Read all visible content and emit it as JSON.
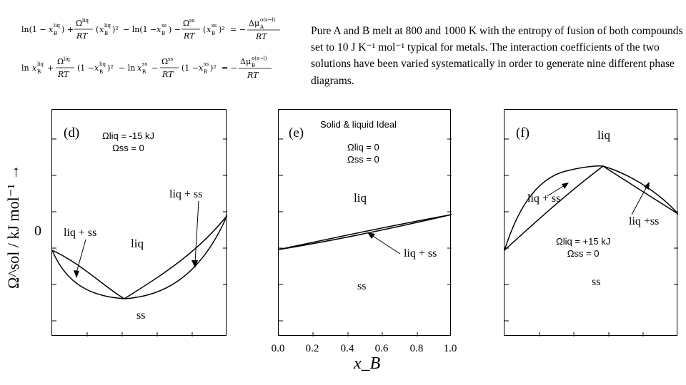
{
  "equations": {
    "eq1": "ln(1 − x_B^liq) + (Ω^liq/RT)(x_B^liq)² − ln(1 − x_B^ss) − (Ω^ss/RT)(x_B^ss)² = −Δμ_A^o(s→l)/RT",
    "eq2": "ln x_B^liq + (Ω^liq/RT)(1 − x_B^liq)² − ln x_B^ss − (Ω^ss/RT)(1 − x_B^ss)² = −Δμ_B^o(s→l)/RT"
  },
  "description": "Pure A and B melt at 800 and 1000 K with the entropy of fusion of both compounds set to 10 J K⁻¹ mol⁻¹ typical for metals. The interaction coefficients of the two solutions have been varied systematically in order to generate nine different phase diagrams.",
  "y_axis_label": "Ω^sol / kJ mol⁻¹ →",
  "y_zero_label": "0",
  "x_axis_label": "x_B",
  "x_ticks": [
    "0.0",
    "0.2",
    "0.4",
    "0.6",
    "0.8",
    "1.0"
  ],
  "panels": [
    {
      "letter": "(d)",
      "omega_liq": "Ωliq = -15 kJ",
      "omega_ss": "Ωss = 0",
      "labels": {
        "liq_ss_right": "liq + ss",
        "liq_ss_left": "liq + ss",
        "liq": "liq",
        "ss": "ss"
      }
    },
    {
      "letter": "(e)",
      "title": "Solid & liquid Ideal",
      "omega_liq": "Ωliq = 0",
      "omega_ss": "Ωss = 0",
      "labels": {
        "liq": "liq",
        "liq_ss": "liq + ss",
        "ss": "ss"
      }
    },
    {
      "letter": "(f)",
      "omega_liq": "Ωliq = +15 kJ",
      "omega_ss": "Ωss = 0",
      "labels": {
        "liq": "liq",
        "liq_ss_left": "liq + ss",
        "liq_ss_right": "liq +ss",
        "ss": "ss"
      }
    }
  ]
}
